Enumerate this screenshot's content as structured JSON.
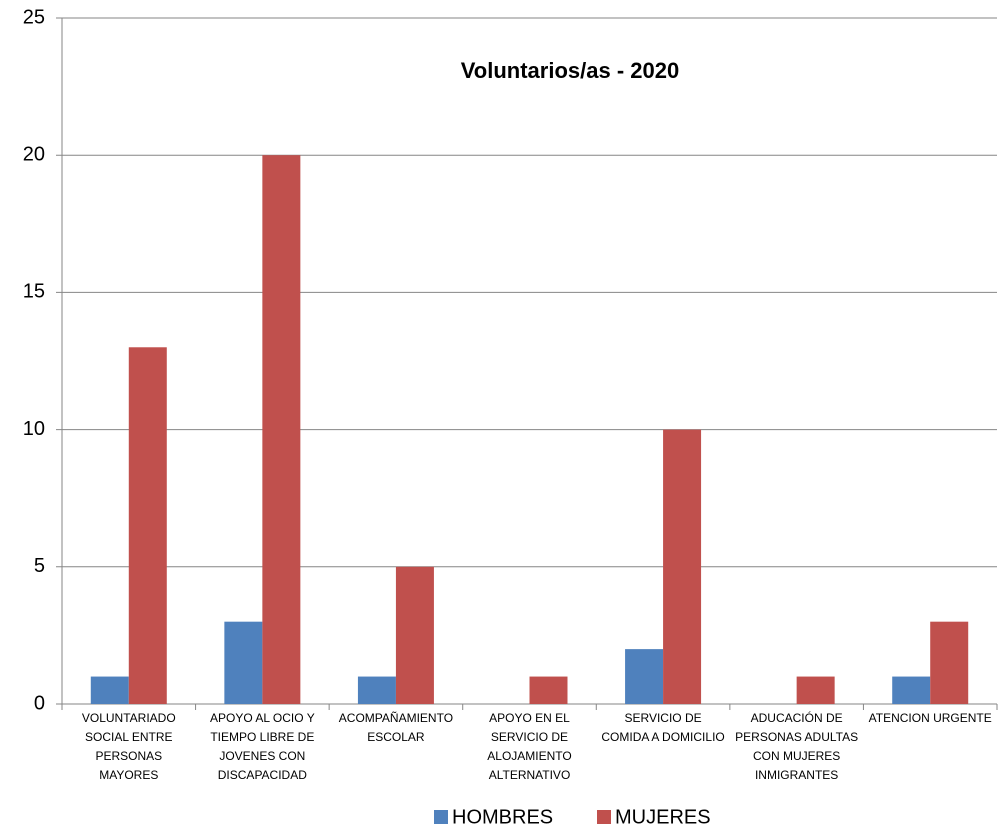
{
  "chart_data": {
    "type": "bar",
    "title": "Voluntarios/as - 2020",
    "categories": [
      "VOLUNTARIADO SOCIAL ENTRE PERSONAS MAYORES",
      "APOYO AL OCIO Y TIEMPO LIBRE DE JOVENES CON DISCAPACIDAD",
      "ACOMPAÑAMIENTO ESCOLAR",
      "APOYO EN EL SERVICIO DE ALOJAMIENTO ALTERNATIVO",
      "SERVICIO DE COMIDA A DOMICILIO",
      "ADUCACIÓN DE PERSONAS ADULTAS CON MUJERES INMIGRANTES",
      "ATENCION URGENTE"
    ],
    "series": [
      {
        "name": "HOMBRES",
        "color": "#4f81bd",
        "values": [
          1,
          3,
          1,
          0,
          2,
          0,
          1
        ]
      },
      {
        "name": "MUJERES",
        "color": "#c0504d",
        "values": [
          13,
          20,
          5,
          1,
          10,
          1,
          3
        ]
      }
    ],
    "ylim": [
      0,
      25
    ],
    "yticks": [
      0,
      5,
      10,
      15,
      20,
      25
    ],
    "grid": true,
    "legend": "bottom"
  }
}
